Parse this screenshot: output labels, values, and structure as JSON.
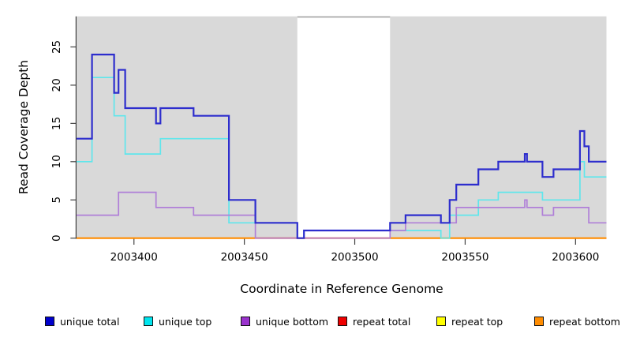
{
  "chart_data": {
    "type": "line",
    "step": true,
    "title": "",
    "xlabel": "Coordinate in Reference Genome",
    "ylabel": "Read Coverage Depth",
    "xlim": [
      2003374,
      2003614
    ],
    "ylim": [
      0,
      29
    ],
    "xticks": [
      2003400,
      2003450,
      2003500,
      2003550,
      2003600
    ],
    "yticks": [
      0,
      5,
      10,
      15,
      20,
      25
    ],
    "grid": false,
    "legend_position": "bottom",
    "plot_bg": "#d9d9d9",
    "repeat_region": {
      "x0": 2003474,
      "x1": 2003516,
      "color": "#ffffff",
      "top_edge_color": "#9c9c9c"
    },
    "baseline_overlap": {
      "x0": 2003455,
      "x1": 2003516,
      "y": 0,
      "color": "#e05578"
    },
    "series": [
      {
        "name": "unique total",
        "color": "#2d2dcd",
        "width": 2.2,
        "steps": [
          [
            2003374,
            13
          ],
          [
            2003381,
            24
          ],
          [
            2003391,
            19
          ],
          [
            2003393,
            22
          ],
          [
            2003396,
            17
          ],
          [
            2003410,
            15
          ],
          [
            2003412,
            17
          ],
          [
            2003427,
            16
          ],
          [
            2003443,
            5
          ],
          [
            2003455,
            2
          ],
          [
            2003474,
            0
          ],
          [
            2003477,
            1
          ],
          [
            2003516,
            2
          ],
          [
            2003523,
            3
          ],
          [
            2003539,
            2
          ],
          [
            2003543,
            5
          ],
          [
            2003546,
            7
          ],
          [
            2003556,
            9
          ],
          [
            2003565,
            10
          ],
          [
            2003577,
            11
          ],
          [
            2003578,
            10
          ],
          [
            2003585,
            8
          ],
          [
            2003590,
            9
          ],
          [
            2003602,
            14
          ],
          [
            2003604,
            12
          ],
          [
            2003606,
            10
          ]
        ]
      },
      {
        "name": "unique top",
        "color": "#5fe6ec",
        "width": 1.7,
        "steps": [
          [
            2003374,
            10
          ],
          [
            2003381,
            21
          ],
          [
            2003391,
            16
          ],
          [
            2003396,
            11
          ],
          [
            2003412,
            13
          ],
          [
            2003443,
            2
          ],
          [
            2003474,
            0
          ],
          [
            2003477,
            1
          ],
          [
            2003539,
            0
          ],
          [
            2003543,
            3
          ],
          [
            2003556,
            5
          ],
          [
            2003565,
            6
          ],
          [
            2003585,
            5
          ],
          [
            2003602,
            10
          ],
          [
            2003604,
            8
          ]
        ]
      },
      {
        "name": "unique bottom",
        "color": "#b07fd8",
        "width": 1.7,
        "steps": [
          [
            2003374,
            3
          ],
          [
            2003393,
            6
          ],
          [
            2003410,
            4
          ],
          [
            2003427,
            3
          ],
          [
            2003455,
            0
          ],
          [
            2003516,
            1
          ],
          [
            2003523,
            2
          ],
          [
            2003546,
            4
          ],
          [
            2003577,
            5
          ],
          [
            2003578,
            4
          ],
          [
            2003585,
            3
          ],
          [
            2003590,
            4
          ],
          [
            2003606,
            2
          ]
        ]
      },
      {
        "name": "repeat total",
        "color": "#dd2222",
        "width": 1.4,
        "steps": [
          [
            2003374,
            0
          ]
        ]
      },
      {
        "name": "repeat top",
        "color": "#ffff00",
        "width": 1.4,
        "steps": [
          [
            2003374,
            0
          ]
        ]
      },
      {
        "name": "repeat bottom",
        "color": "#ff8c00",
        "width": 2.2,
        "steps": [
          [
            2003374,
            0
          ]
        ]
      }
    ]
  },
  "legend": {
    "items": [
      {
        "label": "unique total",
        "color": "#0000cd"
      },
      {
        "label": "unique top",
        "color": "#00e5ee"
      },
      {
        "label": "unique bottom",
        "color": "#9a32cd"
      },
      {
        "label": "repeat total",
        "color": "#ee0000"
      },
      {
        "label": "repeat top",
        "color": "#ffff00"
      },
      {
        "label": "repeat bottom",
        "color": "#ff8c00"
      }
    ]
  }
}
